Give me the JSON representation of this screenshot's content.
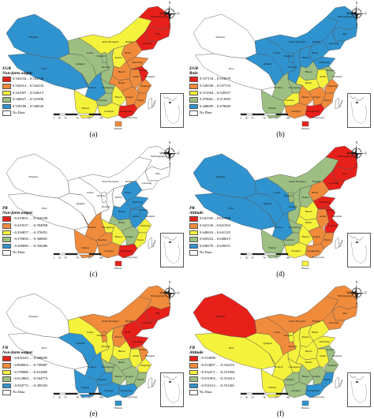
{
  "colors": {
    "red": "#e8201a",
    "orange": "#f08b3b",
    "yellow": "#f5f23c",
    "green": "#9dbf82",
    "blue": "#2f93cf",
    "nodata": "#ffffff",
    "outline": "#555555"
  },
  "compass": {
    "n": "N",
    "s": "S",
    "e": "E",
    "w": "W"
  },
  "scale_ticks": [
    "0",
    "185",
    "370",
    "740",
    "1110",
    "1480"
  ],
  "province_labels": {
    "xinjiang": "Xinjiang",
    "tibet": "Tibet",
    "qinghai": "Qinghai",
    "gansu": "Gansu",
    "inner_mongolia": "Inner Mongolia",
    "heilongjiang": "Heilongjiang",
    "jilin": "Jilin",
    "liaoning": "Liaoning",
    "beijing": "Beijing",
    "hebei": "Hebei",
    "shanxi": "Shanxi",
    "shandong": "Shandong",
    "henan": "Henan",
    "shaanxi": "Shaanxi",
    "ningxia": "Ningxia",
    "sichuan": "Sichuan",
    "chongqing": "Chongqing",
    "hubei": "Hubei",
    "anhui": "Anhui",
    "jiangsu": "Jiangsu",
    "shanghai": "Shanghai",
    "zhejiang": "Zhejiang",
    "hunan": "Hunan",
    "jiangxi": "Jiangxi",
    "fujian": "Fujian",
    "guizhou": "Guizhou",
    "yunnan": "Yunnan",
    "guangxi": "Guangxi",
    "guangdong": "Guangdong",
    "hainan": "Hainan",
    "taiwan": "Taiwan",
    "hongkong": "Hong Kong"
  },
  "panels": [
    {
      "letter": "(a)",
      "legend_title": [
        "EGR",
        "Non-farm output"
      ],
      "legend_items": [
        {
          "color": "#e8201a",
          "label": "0.543234 – 0.543744"
        },
        {
          "color": "#f08b3b",
          "label": "0.542614 – 0.543233"
        },
        {
          "color": "#f5f23c",
          "label": "0.541907 – 0.542613"
        },
        {
          "color": "#9dbf82",
          "label": "0.540027 – 0.541906"
        },
        {
          "color": "#2f93cf",
          "label": "0.539180 – 0.540026"
        },
        {
          "color": "#ffffff",
          "label": "No Data"
        }
      ],
      "regions": {
        "xinjiang": "blue",
        "tibet": "blue",
        "qinghai": "green",
        "gansu": "green",
        "inner_mongolia": "yellow",
        "heilongjiang": "red",
        "jilin": "red",
        "liaoning": "red",
        "beijing": "red",
        "hebei": "orange",
        "shanxi": "yellow",
        "shandong": "orange",
        "henan": "orange",
        "shaanxi": "green",
        "ningxia": "green",
        "sichuan": "blue",
        "chongqing": "green",
        "hubei": "orange",
        "anhui": "orange",
        "jiangsu": "red",
        "zhejiang": "orange",
        "hunan": "yellow",
        "jiangxi": "orange",
        "fujian": "orange",
        "guizhou": "green",
        "yunnan": "yellow",
        "guangxi": "yellow",
        "guangdong": "red",
        "hainan": "orange",
        "taiwan": "nodata"
      }
    },
    {
      "letter": "(b)",
      "legend_title": [
        "EGR",
        "Rain"
      ],
      "legend_items": [
        {
          "color": "#e8201a",
          "label": "0.537154 – 0.553879"
        },
        {
          "color": "#f08b3b",
          "label": "0.528358 – 0.537153"
        },
        {
          "color": "#f5f23c",
          "label": "0.513504 – 0.528357"
        },
        {
          "color": "#9dbf82",
          "label": "0.479661 – 0.513503"
        },
        {
          "color": "#2f93cf",
          "label": "0.448699 – 0.479660"
        },
        {
          "color": "#ffffff",
          "label": "No Data"
        }
      ],
      "regions": {
        "xinjiang": "nodata",
        "tibet": "nodata",
        "qinghai": "blue",
        "gansu": "blue",
        "inner_mongolia": "blue",
        "heilongjiang": "blue",
        "jilin": "blue",
        "liaoning": "blue",
        "beijing": "blue",
        "hebei": "blue",
        "shanxi": "blue",
        "shandong": "blue",
        "henan": "green",
        "shaanxi": "blue",
        "ningxia": "blue",
        "sichuan": "green",
        "chongqing": "green",
        "hubei": "yellow",
        "anhui": "yellow",
        "jiangsu": "green",
        "zhejiang": "orange",
        "hunan": "orange",
        "jiangxi": "orange",
        "fujian": "orange",
        "guizhou": "yellow",
        "yunnan": "green",
        "guangxi": "orange",
        "guangdong": "red",
        "hainan": "red",
        "taiwan": "nodata"
      }
    },
    {
      "letter": "(c)",
      "legend_title": [
        "PR",
        "Non-farm output"
      ],
      "legend_items": [
        {
          "color": "#e8201a",
          "label": "−0.419031 – −0.410538"
        },
        {
          "color": "#f08b3b",
          "label": "−0.410537 – −0.394858"
        },
        {
          "color": "#f5f23c",
          "label": "−0.394857 – −0.376851"
        },
        {
          "color": "#9dbf82",
          "label": "−0.376850 – −0.368681"
        },
        {
          "color": "#2f93cf",
          "label": "−0.368680 – −0.350486"
        },
        {
          "color": "#ffffff",
          "label": "No Data"
        }
      ],
      "regions": {
        "xinjiang": "nodata",
        "tibet": "nodata",
        "qinghai": "nodata",
        "gansu": "nodata",
        "inner_mongolia": "nodata",
        "heilongjiang": "nodata",
        "jilin": "nodata",
        "liaoning": "nodata",
        "beijing": "nodata",
        "hebei": "blue",
        "shanxi": "nodata",
        "shandong": "blue",
        "henan": "blue",
        "shaanxi": "nodata",
        "ningxia": "nodata",
        "sichuan": "orange",
        "chongqing": "yellow",
        "hubei": "green",
        "anhui": "blue",
        "jiangsu": "blue",
        "zhejiang": "yellow",
        "hunan": "yellow",
        "jiangxi": "green",
        "fujian": "yellow",
        "guizhou": "orange",
        "yunnan": "orange",
        "guangxi": "orange",
        "guangdong": "red",
        "hainan": "red",
        "taiwan": "nodata"
      }
    },
    {
      "letter": "(d)",
      "legend_title": [
        "PR",
        "Altitude"
      ],
      "legend_items": [
        {
          "color": "#e8201a",
          "label": "0.641505 – 0.641908"
        },
        {
          "color": "#f08b3b",
          "label": "0.641136 – 0.641504"
        },
        {
          "color": "#f5f23c",
          "label": "0.640616 – 0.641135"
        },
        {
          "color": "#9dbf82",
          "label": "0.639252 – 0.640615"
        },
        {
          "color": "#2f93cf",
          "label": "0.638278 – 0.639251"
        },
        {
          "color": "#ffffff",
          "label": "No Data"
        }
      ],
      "regions": {
        "xinjiang": "blue",
        "tibet": "blue",
        "qinghai": "blue",
        "gansu": "blue",
        "inner_mongolia": "green",
        "heilongjiang": "red",
        "jilin": "red",
        "liaoning": "red",
        "beijing": "orange",
        "hebei": "orange",
        "shanxi": "green",
        "shandong": "red",
        "henan": "yellow",
        "shaanxi": "green",
        "ningxia": "green",
        "sichuan": "blue",
        "chongqing": "green",
        "hubei": "yellow",
        "anhui": "orange",
        "jiangsu": "red",
        "zhejiang": "red",
        "hunan": "yellow",
        "jiangxi": "orange",
        "fujian": "orange",
        "guizhou": "green",
        "yunnan": "green",
        "guangxi": "yellow",
        "guangdong": "orange",
        "hainan": "yellow",
        "taiwan": "nodata"
      }
    },
    {
      "letter": "(e)",
      "legend_title": [
        "FR",
        "Non-farm output"
      ],
      "legend_items": [
        {
          "color": "#e8201a",
          "label": "−0.841043 – −0.808005"
        },
        {
          "color": "#f08b3b",
          "label": "−0.808004 – −0.709887"
        },
        {
          "color": "#f5f23c",
          "label": "−0.709886 – −0.612885"
        },
        {
          "color": "#9dbf82",
          "label": "−0.612884 – −0.504773"
        },
        {
          "color": "#2f93cf",
          "label": "−0.504772 – −0.395565"
        },
        {
          "color": "#ffffff",
          "label": "No Data"
        }
      ],
      "regions": {
        "xinjiang": "nodata",
        "tibet": "nodata",
        "qinghai": "blue",
        "gansu": "yellow",
        "inner_mongolia": "orange",
        "heilongjiang": "orange",
        "jilin": "red",
        "liaoning": "red",
        "beijing": "red",
        "hebei": "red",
        "shanxi": "orange",
        "shandong": "red",
        "henan": "yellow",
        "shaanxi": "yellow",
        "ningxia": "orange",
        "sichuan": "blue",
        "chongqing": "green",
        "hubei": "green",
        "anhui": "yellow",
        "jiangsu": "orange",
        "zhejiang": "yellow",
        "hunan": "green",
        "jiangxi": "green",
        "fujian": "green",
        "guizhou": "blue",
        "yunnan": "blue",
        "guangxi": "blue",
        "guangdong": "blue",
        "hainan": "blue",
        "taiwan": "nodata"
      }
    },
    {
      "letter": "(f)",
      "legend_title": [
        "FR",
        "Altitude"
      ],
      "legend_items": [
        {
          "color": "#e8201a",
          "label": "−0.553898"
        },
        {
          "color": "#f08b3b",
          "label": "−0.553897 – −0.552472"
        },
        {
          "color": "#f5f23c",
          "label": "−0.552471 – −0.551904"
        },
        {
          "color": "#9dbf82",
          "label": "−0.551903 – −0.551613"
        },
        {
          "color": "#2f93cf",
          "label": "−0.551612 – −0.551301"
        },
        {
          "color": "#ffffff",
          "label": "No Data"
        }
      ],
      "regions": {
        "xinjiang": "red",
        "tibet": "yellow",
        "qinghai": "yellow",
        "gansu": "orange",
        "inner_mongolia": "orange",
        "heilongjiang": "orange",
        "jilin": "orange",
        "liaoning": "orange",
        "beijing": "yellow",
        "hebei": "yellow",
        "shanxi": "yellow",
        "shandong": "yellow",
        "henan": "yellow",
        "shaanxi": "yellow",
        "ningxia": "yellow",
        "sichuan": "yellow",
        "chongqing": "yellow",
        "hubei": "yellow",
        "anhui": "yellow",
        "jiangsu": "green",
        "zhejiang": "green",
        "hunan": "green",
        "jiangxi": "green",
        "fujian": "blue",
        "guizhou": "green",
        "yunnan": "yellow",
        "guangxi": "green",
        "guangdong": "blue",
        "hainan": "blue",
        "taiwan": "nodata"
      }
    }
  ]
}
